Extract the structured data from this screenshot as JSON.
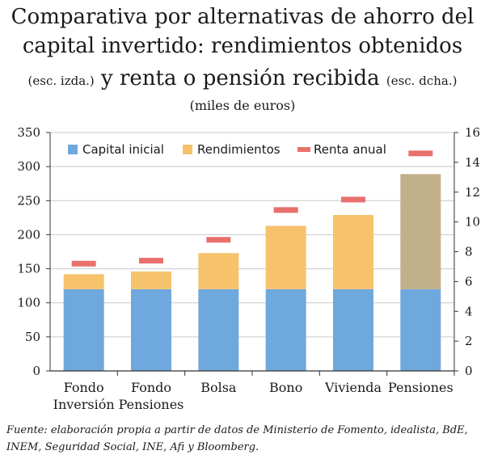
{
  "header": {
    "title_line1": "Comparativa por alternativas de ahorro del",
    "title_line2": "capital invertido: rendimientos obtenidos",
    "title_line3_left_note": "(esc. izda.)",
    "title_line3_main": " y renta o pensión recibida ",
    "title_line3_right_note": "(esc. dcha.)",
    "units": "(miles de euros)"
  },
  "source": "Fuente: elaboración propia a partir de datos de Ministerio de Fomento, idealista, BdE, INEM, Seguridad Social, INE, Afi y Bloomberg.",
  "colors": {
    "capital": "#6fa8dc",
    "rendimientos": "#f6c36c",
    "pensiones_top": "#c2b08a",
    "renta": "#e8706d"
  },
  "chart_data": {
    "type": "bar",
    "stacked": true,
    "categories": [
      [
        "Fondo",
        "Inversión"
      ],
      [
        "Fondo",
        "Pensiones"
      ],
      [
        "Bolsa"
      ],
      [
        "Bono"
      ],
      [
        "Vivienda"
      ],
      [
        "Pensiones"
      ]
    ],
    "series": [
      {
        "name": "Capital inicial",
        "axis": "left",
        "values": [
          120,
          120,
          120,
          120,
          120,
          120
        ]
      },
      {
        "name": "Rendimientos",
        "axis": "left",
        "values": [
          22,
          26,
          53,
          93,
          109,
          169
        ]
      },
      {
        "name": "Renta anual",
        "axis": "right",
        "marker": "dash",
        "values": [
          7.2,
          7.4,
          8.8,
          10.8,
          11.5,
          14.6
        ]
      }
    ],
    "y_left": {
      "min": 0,
      "max": 350,
      "ticks": [
        0,
        50,
        100,
        150,
        200,
        250,
        300,
        350
      ]
    },
    "y_right": {
      "min": 0,
      "max": 16,
      "ticks": [
        0,
        2,
        4,
        6,
        8,
        10,
        12,
        14,
        16
      ]
    },
    "legend_position": "top",
    "grid": true
  }
}
